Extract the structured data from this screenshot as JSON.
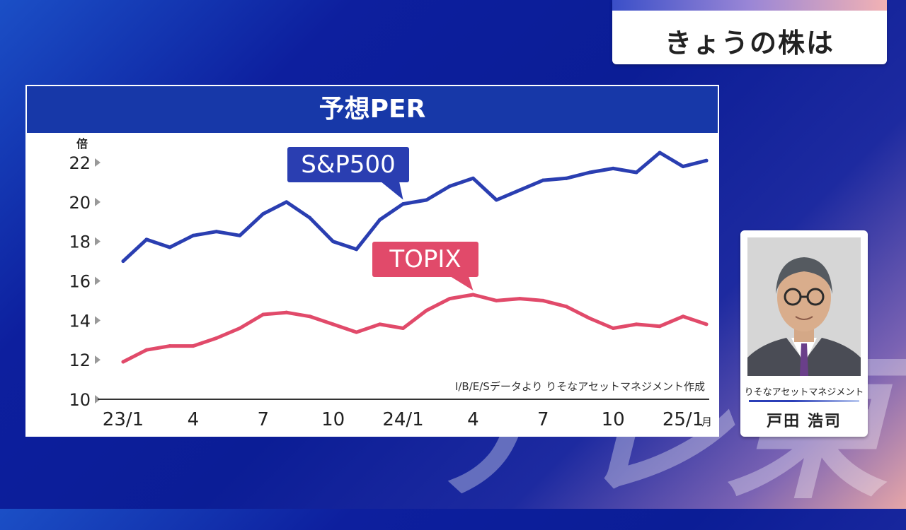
{
  "watermark": "テレ東",
  "program_title": "きょうの株は",
  "chart_data": {
    "type": "line",
    "title": "予想PER",
    "y_unit": "倍",
    "ylim": [
      10,
      22
    ],
    "y_ticks": [
      22,
      20,
      18,
      16,
      14,
      12,
      10
    ],
    "x_tick_labels": [
      "23/1",
      "4",
      "7",
      "10",
      "24/1",
      "4",
      "7",
      "10",
      "25/1"
    ],
    "x_tick_suffix": "月",
    "x": [
      "2023-01",
      "2023-02",
      "2023-03",
      "2023-04",
      "2023-05",
      "2023-06",
      "2023-07",
      "2023-08",
      "2023-09",
      "2023-10",
      "2023-11",
      "2023-12",
      "2024-01",
      "2024-02",
      "2024-03",
      "2024-04",
      "2024-05",
      "2024-06",
      "2024-07",
      "2024-08",
      "2024-09",
      "2024-10",
      "2024-11",
      "2024-12",
      "2025-01",
      "2025-02"
    ],
    "series": [
      {
        "name": "S&P500",
        "color": "#2a3eb1",
        "values": [
          17.0,
          18.1,
          17.7,
          18.3,
          18.5,
          18.3,
          19.4,
          20.0,
          19.2,
          18.0,
          17.6,
          19.1,
          19.9,
          20.1,
          20.8,
          21.2,
          20.1,
          20.6,
          21.1,
          21.2,
          21.5,
          21.7,
          21.5,
          22.5,
          21.8,
          22.1
        ]
      },
      {
        "name": "TOPIX",
        "color": "#e14a6a",
        "values": [
          11.9,
          12.5,
          12.7,
          12.7,
          13.1,
          13.6,
          14.3,
          14.4,
          14.2,
          13.8,
          13.4,
          13.8,
          13.6,
          14.5,
          15.1,
          15.3,
          15.0,
          15.1,
          15.0,
          14.7,
          14.1,
          13.6,
          13.8,
          13.7,
          14.2,
          13.8
        ]
      }
    ],
    "source_note": "I/B/E/Sデータより りそなアセットマネジメント作成"
  },
  "guest": {
    "company": "りそなアセットマネジメント",
    "name": "戸田 浩司"
  }
}
